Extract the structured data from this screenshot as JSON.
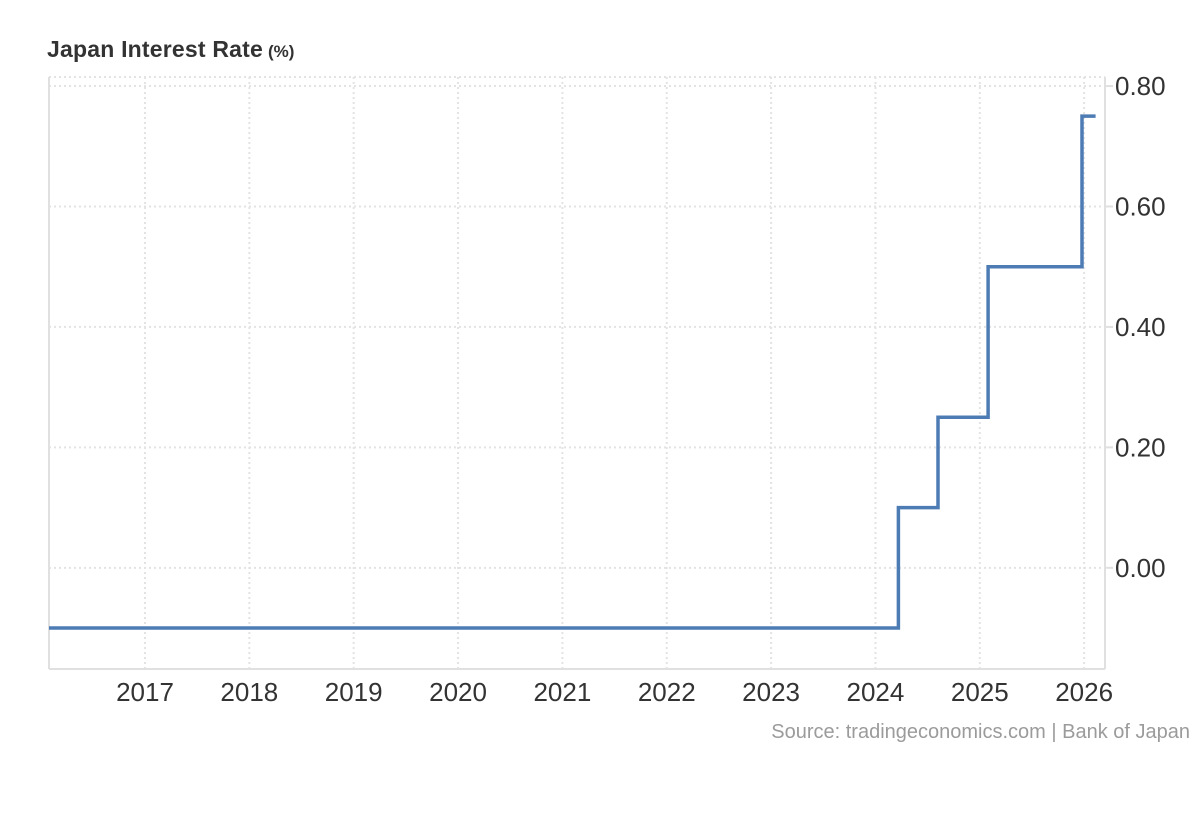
{
  "header": {
    "title": "Japan Interest Rate",
    "unit_suffix": "(%)"
  },
  "footer": {
    "source": "Source: tradingeconomics.com | Bank of Japan"
  },
  "colors": {
    "line": "#4d7cb5",
    "grid_dotted": "#e3e3e3",
    "plot_border": "#e0e0e0",
    "axis_label": "#333333",
    "title": "#333333",
    "source_text": "#9b9b9b",
    "background": "#ffffff"
  },
  "chart_data": {
    "type": "line",
    "line_style": "step",
    "title": "Japan Interest Rate (%)",
    "ylabel": "",
    "xlabel": "",
    "grid": "dotted",
    "legend": "none",
    "x_axis": {
      "min": 2016.08,
      "max": 2026.2,
      "ticks": [
        2017,
        2018,
        2019,
        2020,
        2021,
        2022,
        2023,
        2024,
        2025,
        2026
      ]
    },
    "y_axis": {
      "min": -0.168,
      "max": 0.815,
      "ticks": [
        0.8,
        0.6,
        0.4,
        0.2,
        0.0
      ],
      "tick_labels": [
        "0.80",
        "0.60",
        "0.40",
        "0.20",
        "0.00"
      ],
      "side": "right"
    },
    "series": [
      {
        "name": "Japan Interest Rate",
        "segments": [
          {
            "start": 2016.08,
            "end": 2024.22,
            "rate": -0.1
          },
          {
            "start": 2024.22,
            "end": 2024.6,
            "rate": 0.1
          },
          {
            "start": 2024.6,
            "end": 2025.08,
            "rate": 0.25
          },
          {
            "start": 2025.08,
            "end": 2025.98,
            "rate": 0.5
          },
          {
            "start": 2025.98,
            "end": 2026.11,
            "rate": 0.75
          }
        ]
      }
    ]
  }
}
